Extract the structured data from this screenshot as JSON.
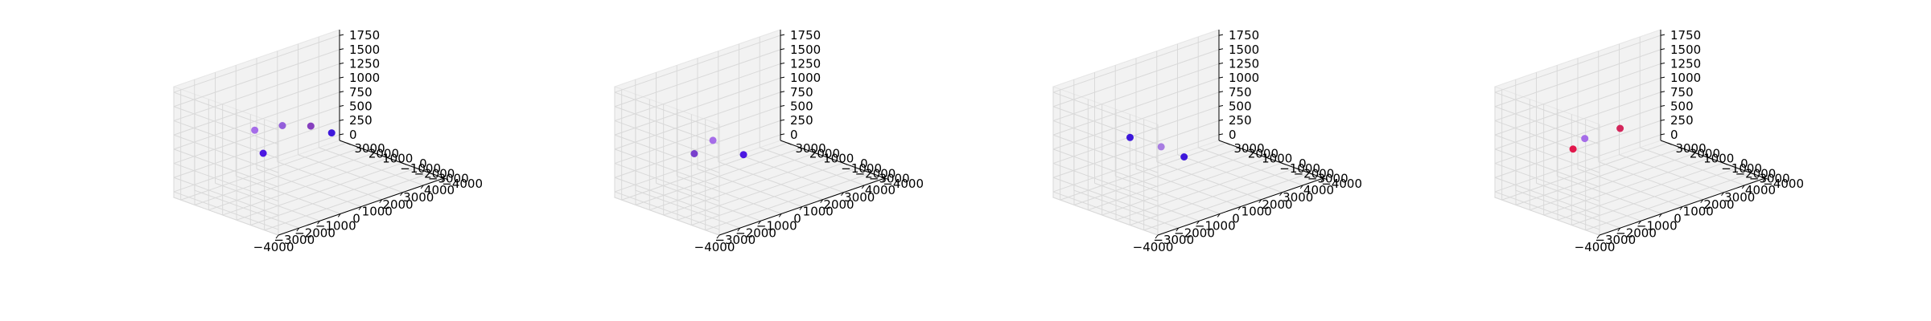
{
  "figure": {
    "type": "matplotlib-3d-scatter-grid",
    "panel_count": 4
  },
  "axes": {
    "x_ticks": [
      "−4000",
      "−3000",
      "−2000",
      "−1000",
      "0",
      "1000",
      "2000",
      "3000",
      "4000"
    ],
    "y_ticks": [
      "−4000",
      "−3000",
      "−2000",
      "−1000",
      "0",
      "1000",
      "2000",
      "3000"
    ],
    "z_ticks": [
      "0",
      "250",
      "500",
      "750",
      "1000",
      "1250",
      "1500",
      "1750"
    ],
    "xlim": [
      -4000,
      4000
    ],
    "ylim": [
      -4000,
      3500
    ],
    "zlim": [
      -100,
      1850
    ],
    "grid": true,
    "pane_color": "#f2f2f2",
    "grid_color": "#d9d9d9"
  },
  "chart_data": [
    {
      "type": "scatter3d",
      "title": "",
      "xlabel": "",
      "ylabel": "",
      "zlabel": "",
      "points": [
        {
          "x": -1100,
          "y": 1400,
          "z": 500,
          "color": "#3a00e0"
        },
        {
          "x": -700,
          "y": 2600,
          "z": 750,
          "color": "#9d5ee8"
        },
        {
          "x": 300,
          "y": 2100,
          "z": 750,
          "color": "#8a4fd8"
        },
        {
          "x": 1200,
          "y": 1400,
          "z": 690,
          "color": "#7a2bb8"
        },
        {
          "x": 1600,
          "y": 500,
          "z": 600,
          "color": "#2a00d8"
        }
      ]
    },
    {
      "type": "scatter3d",
      "title": "",
      "xlabel": "",
      "ylabel": "",
      "zlabel": "",
      "points": [
        {
          "x": -1100,
          "y": 2100,
          "z": 430,
          "color": "#6a2bc8"
        },
        {
          "x": 0,
          "y": 2400,
          "z": 500,
          "color": "#9d5ee8"
        },
        {
          "x": 400,
          "y": 800,
          "z": 340,
          "color": "#3a00e0"
        }
      ]
    },
    {
      "type": "scatter3d",
      "title": "",
      "xlabel": "",
      "ylabel": "",
      "zlabel": "",
      "points": [
        {
          "x": -1300,
          "y": 2000,
          "z": 750,
          "color": "#2a00d8"
        },
        {
          "x": 0,
          "y": 1700,
          "z": 450,
          "color": "#a070e0"
        },
        {
          "x": 300,
          "y": 500,
          "z": 340,
          "color": "#2a00d8"
        }
      ]
    },
    {
      "type": "scatter3d",
      "title": "",
      "xlabel": "",
      "ylabel": "",
      "zlabel": "",
      "points": [
        {
          "x": 0,
          "y": 3000,
          "z": 480,
          "color": "#9d5ee8"
        },
        {
          "x": -700,
          "y": 2800,
          "z": 400,
          "color": "#e0003a"
        },
        {
          "x": 1100,
          "y": 2100,
          "z": 600,
          "color": "#d0104a"
        }
      ]
    }
  ]
}
